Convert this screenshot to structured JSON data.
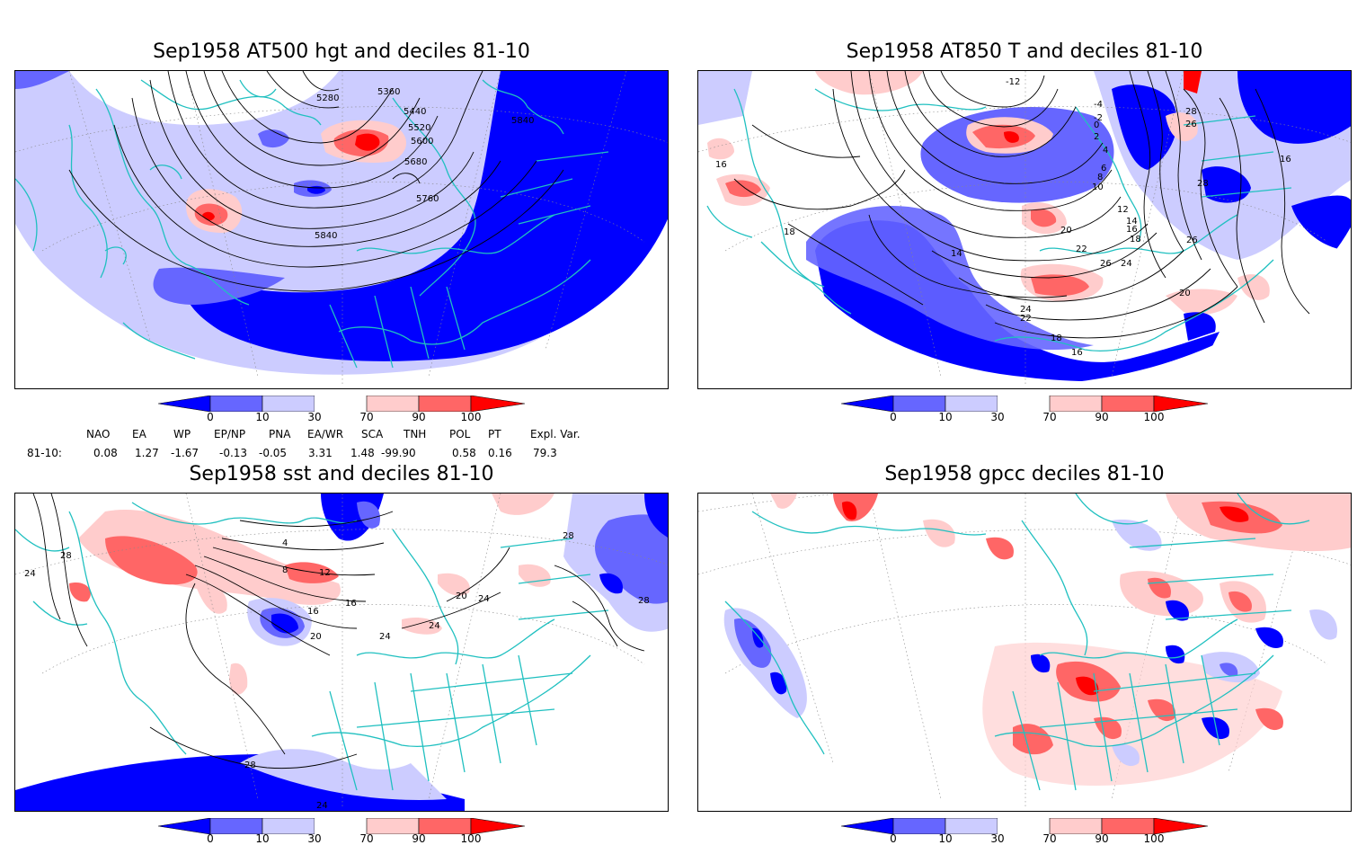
{
  "panels": [
    {
      "title": "Sep1958 AT500 hgt and deciles 81-10",
      "contour_labels": [
        "5280",
        "5360",
        "5440",
        "5520",
        "5600",
        "5680",
        "5760",
        "5840",
        "5840"
      ]
    },
    {
      "title": "Sep1958 AT850 T and deciles 81-10",
      "contour_labels": [
        "-12",
        "-4",
        "-2",
        "0",
        "2",
        "4",
        "6",
        "8",
        "10",
        "12",
        "14",
        "16",
        "16",
        "16",
        "18",
        "18",
        "18",
        "20",
        "20",
        "22",
        "22",
        "24",
        "24",
        "26",
        "26",
        "26",
        "28",
        "28",
        "14",
        "16"
      ]
    },
    {
      "title": "Sep1958 sst and deciles 81-10",
      "contour_labels": [
        "24",
        "28",
        "4",
        "8",
        "12",
        "16",
        "16",
        "20",
        "24",
        "24",
        "20",
        "24",
        "28",
        "28",
        "28",
        "24"
      ]
    },
    {
      "title": "Sep1958 gpcc deciles 81-10",
      "contour_labels": []
    }
  ],
  "colorbar": {
    "ticks": [
      "0",
      "10",
      "30",
      "70",
      "90",
      "100"
    ],
    "colors": [
      "#0000ff",
      "#6666ff",
      "#ccccff",
      "#ffffff",
      "#ffcccc",
      "#ff6666",
      "#ff0000"
    ]
  },
  "indices": {
    "headers": [
      "NAO",
      "EA",
      "WP",
      "EP/NP",
      "PNA",
      "EA/WR",
      "SCA",
      "TNH",
      "POL",
      "PT",
      "Expl. Var."
    ],
    "row_label": "81-10:",
    "values": [
      "0.08",
      "1.27",
      "-1.67",
      "-0.13",
      "-0.05",
      "3.31",
      "1.48",
      "-99.90",
      "0.58",
      "0.16",
      "79.3"
    ]
  },
  "colors": {
    "coast": "#20c0c0",
    "contour": "#000000",
    "deep_blue": "#0000ff",
    "mid_blue": "#6666ff",
    "light_blue": "#ccccff",
    "light_red": "#ffcccc",
    "mid_red": "#ff6666",
    "deep_red": "#ff0000"
  }
}
